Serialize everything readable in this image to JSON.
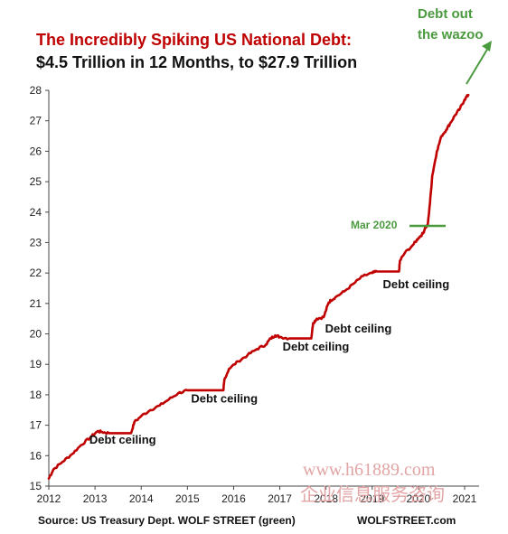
{
  "chart_data": {
    "type": "line",
    "title": "The Incredibly Spiking US National Debt:",
    "subtitle": "$4.5 Trillion  in 12 Months,  to $27.9 Trillion",
    "xlabel": "",
    "ylabel": "",
    "xlim": [
      2012,
      2021.2
    ],
    "ylim": [
      15,
      28
    ],
    "x_ticks": [
      "2012",
      "2013",
      "2014",
      "2015",
      "2016",
      "2017",
      "2018",
      "2019",
      "2020",
      "2021"
    ],
    "y_ticks": [
      "15",
      "16",
      "17",
      "18",
      "19",
      "20",
      "21",
      "22",
      "23",
      "24",
      "25",
      "26",
      "27",
      "28"
    ],
    "grid": false,
    "series_color": "#c00000",
    "annotation_color": "#4a9a3e",
    "series": [
      {
        "x": [
          2012.0,
          2012.1,
          2012.3,
          2012.5,
          2012.7,
          2012.9,
          2013.05,
          2013.15,
          2013.3,
          2013.5,
          2013.7,
          2013.78,
          2013.85,
          2014.0,
          2014.2,
          2014.4,
          2014.6,
          2014.8,
          2015.0,
          2015.2,
          2015.4,
          2015.6,
          2015.78,
          2015.8,
          2015.9,
          2016.1,
          2016.3,
          2016.5,
          2016.7,
          2016.8,
          2016.9,
          2017.0,
          2017.2,
          2017.4,
          2017.6,
          2017.68,
          2017.72,
          2017.8,
          2017.95,
          2018.05,
          2018.1,
          2018.2,
          2018.4,
          2018.6,
          2018.8,
          2019.0,
          2019.1,
          2019.3,
          2019.5,
          2019.58,
          2019.6,
          2019.7,
          2019.9,
          2020.0,
          2020.1,
          2020.15,
          2020.2,
          2020.25,
          2020.3,
          2020.4,
          2020.5,
          2020.6,
          2020.7,
          2020.8,
          2020.9,
          2021.0,
          2021.08
        ],
        "values": [
          15.25,
          15.55,
          15.8,
          16.05,
          16.35,
          16.6,
          16.8,
          16.78,
          16.74,
          16.74,
          16.74,
          16.74,
          17.1,
          17.3,
          17.5,
          17.65,
          17.85,
          18.05,
          18.15,
          18.15,
          18.15,
          18.15,
          18.15,
          18.5,
          18.85,
          19.1,
          19.3,
          19.5,
          19.65,
          19.85,
          19.95,
          19.9,
          19.85,
          19.85,
          19.85,
          19.85,
          20.35,
          20.5,
          20.55,
          21.0,
          21.1,
          21.2,
          21.4,
          21.65,
          21.9,
          22.0,
          22.05,
          22.05,
          22.05,
          22.05,
          22.4,
          22.65,
          22.95,
          23.15,
          23.3,
          23.5,
          23.55,
          24.3,
          25.2,
          26.0,
          26.5,
          26.7,
          26.95,
          27.2,
          27.4,
          27.7,
          27.85
        ]
      }
    ],
    "annotations": [
      {
        "text": "Debt ceiling",
        "x": 2013.6,
        "y": 16.4
      },
      {
        "text": "Debt ceiling",
        "x": 2015.8,
        "y": 17.75
      },
      {
        "text": "Debt ceiling",
        "x": 2017.78,
        "y": 19.45
      },
      {
        "text": "Debt ceiling",
        "x": 2018.7,
        "y": 20.05
      },
      {
        "text": "Debt ceiling",
        "x": 2019.95,
        "y": 21.5
      }
    ],
    "green_labels": [
      "Debt out",
      "the wazoo",
      "Mar 2020"
    ],
    "source": "Source: US Treasury Dept. WOLF STREET (green)",
    "site": "WOLFSTREET.com",
    "watermark_1": "www.h61889.com",
    "watermark_2": "企业信息服务咨询"
  }
}
